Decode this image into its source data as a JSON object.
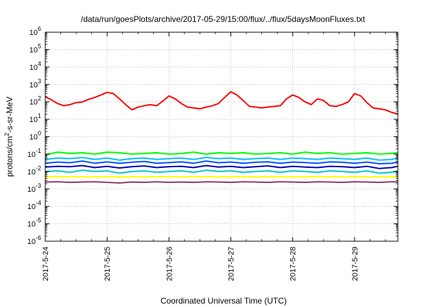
{
  "chart_data": {
    "type": "line",
    "title": "/data/run/goesPlots/archive/2017-05-29/15:00/flux/../flux/5daysMoonFluxes.txt",
    "xlabel": "Coordinated Universal Time (UTC)",
    "ylabel": {
      "prefix": "protons/cm",
      "sup": "2",
      "suffix": "-s-sr-MeV"
    },
    "y_scale": "log",
    "ylim_exponent": [
      -6,
      6
    ],
    "y_ticks": [
      {
        "exp": -6,
        "base": "10",
        "sup": "-6"
      },
      {
        "exp": -5,
        "base": "10",
        "sup": "-5"
      },
      {
        "exp": -4,
        "base": "10",
        "sup": "-4"
      },
      {
        "exp": -3,
        "base": "10",
        "sup": "-3"
      },
      {
        "exp": -2,
        "base": "10",
        "sup": "-2"
      },
      {
        "exp": -1,
        "base": "10",
        "sup": "-1"
      },
      {
        "exp": 0,
        "base": "10",
        "sup": "0"
      },
      {
        "exp": 1,
        "base": "10",
        "sup": "1"
      },
      {
        "exp": 2,
        "base": "10",
        "sup": "2"
      },
      {
        "exp": 3,
        "base": "10",
        "sup": "3"
      },
      {
        "exp": 4,
        "base": "10",
        "sup": "4"
      },
      {
        "exp": 5,
        "base": "10",
        "sup": "5"
      },
      {
        "exp": 6,
        "base": "10",
        "sup": "6"
      }
    ],
    "x_range_days": [
      0,
      5.7
    ],
    "x_ticks": [
      {
        "day": 0,
        "label": "2017-5-24"
      },
      {
        "day": 1,
        "label": "2017-5-25"
      },
      {
        "day": 2,
        "label": "2017-5-26"
      },
      {
        "day": 3,
        "label": "2017-5-27"
      },
      {
        "day": 4,
        "label": "2017-5-28"
      },
      {
        "day": 5,
        "label": "2017-5-29"
      }
    ],
    "grid": true,
    "series": [
      {
        "color": "#ff0000",
        "day": [
          0.0,
          0.1,
          0.2,
          0.3,
          0.4,
          0.5,
          0.6,
          0.7,
          0.8,
          0.9,
          1.0,
          1.1,
          1.2,
          1.3,
          1.4,
          1.5,
          1.6,
          1.7,
          1.8,
          1.9,
          2.0,
          2.1,
          2.2,
          2.3,
          2.4,
          2.5,
          2.6,
          2.7,
          2.8,
          2.9,
          3.0,
          3.1,
          3.2,
          3.3,
          3.4,
          3.5,
          3.6,
          3.7,
          3.8,
          3.9,
          4.0,
          4.1,
          4.2,
          4.3,
          4.4,
          4.5,
          4.6,
          4.7,
          4.8,
          4.9,
          5.0,
          5.1,
          5.2,
          5.3,
          5.4,
          5.5,
          5.6,
          5.7
        ],
        "value": [
          200,
          130,
          80,
          60,
          70,
          90,
          100,
          140,
          180,
          250,
          350,
          300,
          150,
          70,
          35,
          50,
          60,
          70,
          60,
          110,
          220,
          150,
          80,
          50,
          45,
          40,
          50,
          60,
          80,
          180,
          380,
          250,
          120,
          55,
          50,
          45,
          50,
          55,
          60,
          150,
          250,
          180,
          100,
          70,
          150,
          120,
          60,
          55,
          70,
          100,
          300,
          220,
          90,
          45,
          40,
          35,
          25,
          20
        ]
      },
      {
        "color": "#00ff00",
        "day": [
          0.0,
          0.2,
          0.4,
          0.6,
          0.8,
          1.0,
          1.2,
          1.4,
          1.6,
          1.8,
          2.0,
          2.2,
          2.4,
          2.6,
          2.8,
          3.0,
          3.2,
          3.4,
          3.6,
          3.8,
          4.0,
          4.2,
          4.4,
          4.6,
          4.8,
          5.0,
          5.2,
          5.4,
          5.6,
          5.7
        ],
        "value": [
          0.09,
          0.13,
          0.11,
          0.12,
          0.1,
          0.13,
          0.12,
          0.1,
          0.11,
          0.12,
          0.1,
          0.11,
          0.13,
          0.1,
          0.12,
          0.11,
          0.12,
          0.1,
          0.11,
          0.12,
          0.1,
          0.13,
          0.11,
          0.12,
          0.1,
          0.11,
          0.12,
          0.1,
          0.11,
          0.12
        ]
      },
      {
        "color": "#00bfff",
        "day": [
          0.0,
          0.2,
          0.4,
          0.6,
          0.8,
          1.0,
          1.2,
          1.4,
          1.6,
          1.8,
          2.0,
          2.2,
          2.4,
          2.6,
          2.8,
          3.0,
          3.2,
          3.4,
          3.6,
          3.8,
          4.0,
          4.2,
          4.4,
          4.6,
          4.8,
          5.0,
          5.2,
          5.4,
          5.6,
          5.7
        ],
        "value": [
          0.05,
          0.06,
          0.055,
          0.065,
          0.05,
          0.06,
          0.045,
          0.055,
          0.06,
          0.05,
          0.055,
          0.06,
          0.05,
          0.065,
          0.055,
          0.06,
          0.05,
          0.055,
          0.06,
          0.05,
          0.06,
          0.055,
          0.05,
          0.06,
          0.055,
          0.05,
          0.06,
          0.045,
          0.05,
          0.06
        ]
      },
      {
        "color": "#0050ff",
        "day": [
          0.0,
          0.2,
          0.4,
          0.6,
          0.8,
          1.0,
          1.2,
          1.4,
          1.6,
          1.8,
          2.0,
          2.2,
          2.4,
          2.6,
          2.8,
          3.0,
          3.2,
          3.4,
          3.6,
          3.8,
          4.0,
          4.2,
          4.4,
          4.6,
          4.8,
          5.0,
          5.2,
          5.4,
          5.6,
          5.7
        ],
        "value": [
          0.03,
          0.035,
          0.032,
          0.04,
          0.03,
          0.036,
          0.03,
          0.034,
          0.038,
          0.03,
          0.033,
          0.036,
          0.03,
          0.04,
          0.032,
          0.035,
          0.03,
          0.034,
          0.036,
          0.03,
          0.035,
          0.033,
          0.03,
          0.036,
          0.034,
          0.03,
          0.035,
          0.028,
          0.03,
          0.035
        ]
      },
      {
        "color": "#0000b4",
        "day": [
          0.0,
          0.2,
          0.4,
          0.6,
          0.8,
          1.0,
          1.2,
          1.4,
          1.6,
          1.8,
          2.0,
          2.2,
          2.4,
          2.6,
          2.8,
          3.0,
          3.2,
          3.4,
          3.6,
          3.8,
          4.0,
          4.2,
          4.4,
          4.6,
          4.8,
          5.0,
          5.2,
          5.4,
          5.6,
          5.7
        ],
        "value": [
          0.018,
          0.02,
          0.019,
          0.022,
          0.017,
          0.02,
          0.016,
          0.019,
          0.021,
          0.017,
          0.019,
          0.02,
          0.017,
          0.022,
          0.018,
          0.02,
          0.017,
          0.019,
          0.021,
          0.017,
          0.02,
          0.018,
          0.017,
          0.02,
          0.019,
          0.017,
          0.02,
          0.015,
          0.017,
          0.02
        ]
      },
      {
        "color": "#00c8c8",
        "day": [
          0.0,
          0.2,
          0.4,
          0.6,
          0.8,
          1.0,
          1.2,
          1.4,
          1.6,
          1.8,
          2.0,
          2.2,
          2.4,
          2.6,
          2.8,
          3.0,
          3.2,
          3.4,
          3.6,
          3.8,
          4.0,
          4.2,
          4.4,
          4.6,
          4.8,
          5.0,
          5.2,
          5.4,
          5.6,
          5.7
        ],
        "value": [
          0.01,
          0.011,
          0.009,
          0.012,
          0.01,
          0.011,
          0.008,
          0.01,
          0.011,
          0.009,
          0.01,
          0.011,
          0.009,
          0.012,
          0.01,
          0.011,
          0.009,
          0.01,
          0.011,
          0.009,
          0.011,
          0.01,
          0.009,
          0.011,
          0.01,
          0.009,
          0.011,
          0.008,
          0.009,
          0.011
        ]
      },
      {
        "color": "#ffff00",
        "day": [
          0.0,
          0.5,
          1.0,
          1.5,
          2.0,
          2.5,
          3.0,
          3.5,
          4.0,
          4.5,
          5.0,
          5.5,
          5.7
        ],
        "value": [
          0.005,
          0.005,
          0.005,
          0.005,
          0.005,
          0.005,
          0.005,
          0.005,
          0.005,
          0.005,
          0.005,
          0.005,
          0.005
        ]
      },
      {
        "color": "#8b3a62",
        "day": [
          0.0,
          0.2,
          0.4,
          0.6,
          0.8,
          1.0,
          1.2,
          1.4,
          1.6,
          1.8,
          2.0,
          2.2,
          2.4,
          2.6,
          2.8,
          3.0,
          3.2,
          3.4,
          3.6,
          3.8,
          4.0,
          4.2,
          4.4,
          4.6,
          4.8,
          5.0,
          5.2,
          5.4,
          5.6,
          5.7
        ],
        "value": [
          0.0025,
          0.0026,
          0.0024,
          0.0025,
          0.0026,
          0.0024,
          0.0022,
          0.0025,
          0.0024,
          0.0026,
          0.0024,
          0.0025,
          0.0024,
          0.0026,
          0.0025,
          0.0024,
          0.0026,
          0.0025,
          0.0024,
          0.0026,
          0.0025,
          0.0024,
          0.0026,
          0.0025,
          0.0024,
          0.0026,
          0.0025,
          0.0024,
          0.0026,
          0.0025
        ]
      }
    ]
  }
}
